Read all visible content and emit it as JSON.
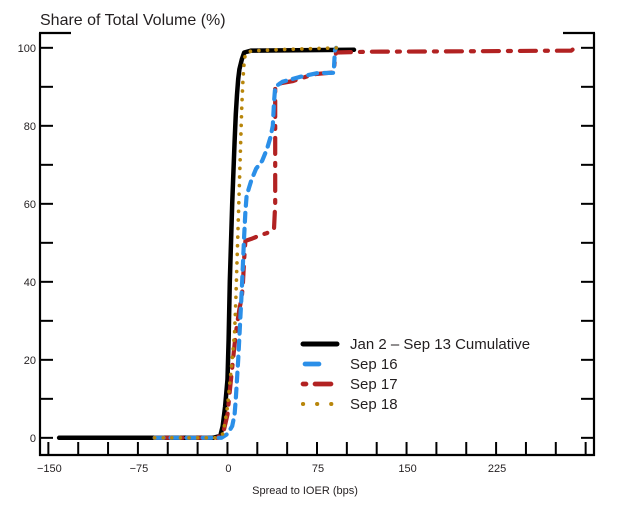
{
  "chart_data": {
    "type": "line",
    "title": "Share of Total Volume (%)",
    "xlabel": "Spread to IOER (bps)",
    "ylabel": "",
    "xlim": [
      -157,
      307
    ],
    "ylim": [
      -4.4,
      103.8
    ],
    "x_ticks": [
      -150,
      -125,
      -100,
      -75,
      -50,
      -25,
      0,
      25,
      50,
      75,
      100,
      125,
      150,
      175,
      200,
      225,
      250,
      275,
      300
    ],
    "x_tick_labels": [
      {
        "value": -150,
        "label": "−150"
      },
      {
        "value": -75,
        "label": "−75"
      },
      {
        "value": 0,
        "label": "0"
      },
      {
        "value": 75,
        "label": "75"
      },
      {
        "value": 150,
        "label": "150"
      },
      {
        "value": 225,
        "label": "225"
      }
    ],
    "y_ticks": [
      0,
      10,
      20,
      30,
      40,
      50,
      60,
      70,
      80,
      90,
      100
    ],
    "y_tick_labels": [
      {
        "value": 0,
        "label": "0"
      },
      {
        "value": 20,
        "label": "20"
      },
      {
        "value": 40,
        "label": "40"
      },
      {
        "value": 60,
        "label": "60"
      },
      {
        "value": 80,
        "label": "80"
      },
      {
        "value": 100,
        "label": "100"
      }
    ],
    "grid": false,
    "legend_position": "bottom-right",
    "series": [
      {
        "name": "Jan 2 – Sep 13 Cumulative",
        "color": "#000000",
        "style": "solid",
        "points": [
          [
            -141,
            0
          ],
          [
            -12,
            0
          ],
          [
            -6,
            0.5
          ],
          [
            -4,
            3
          ],
          [
            -2,
            8
          ],
          [
            0,
            15
          ],
          [
            1,
            25
          ],
          [
            2,
            40
          ],
          [
            3,
            50
          ],
          [
            4,
            60
          ],
          [
            5,
            68
          ],
          [
            6,
            76
          ],
          [
            7,
            83
          ],
          [
            8,
            88
          ],
          [
            9,
            92
          ],
          [
            10,
            94.5
          ],
          [
            12,
            97
          ],
          [
            14,
            98.8
          ],
          [
            20,
            99.3
          ],
          [
            106,
            99.5
          ]
        ]
      },
      {
        "name": "Sep 16",
        "color": "#2b8fe8",
        "style": "dashed",
        "points": [
          [
            -61,
            0
          ],
          [
            -5,
            0
          ],
          [
            0,
            1
          ],
          [
            4,
            3
          ],
          [
            6,
            6
          ],
          [
            7,
            10
          ],
          [
            8,
            15
          ],
          [
            9,
            20
          ],
          [
            10,
            26
          ],
          [
            11,
            32
          ],
          [
            12,
            38
          ],
          [
            13,
            45
          ],
          [
            14,
            52
          ],
          [
            15,
            58
          ],
          [
            16,
            62
          ],
          [
            18,
            64
          ],
          [
            20,
            66
          ],
          [
            24,
            69
          ],
          [
            29,
            71
          ],
          [
            33,
            74
          ],
          [
            36,
            77
          ],
          [
            38,
            80
          ],
          [
            39,
            86
          ],
          [
            40,
            90
          ],
          [
            46,
            91.3
          ],
          [
            60,
            92.5
          ],
          [
            75,
            93.5
          ],
          [
            89,
            93.6
          ],
          [
            90,
            99.3
          ],
          [
            91,
            100
          ]
        ]
      },
      {
        "name": "Sep 17",
        "color": "#b22222",
        "style": "dashdot",
        "points": [
          [
            -61,
            0
          ],
          [
            -8,
            0
          ],
          [
            -3,
            2
          ],
          [
            0,
            6
          ],
          [
            2,
            12
          ],
          [
            4,
            18
          ],
          [
            6,
            24
          ],
          [
            8,
            29
          ],
          [
            10,
            33
          ],
          [
            12,
            36
          ],
          [
            13,
            40
          ],
          [
            14,
            46
          ],
          [
            15,
            50.5
          ],
          [
            20,
            51
          ],
          [
            28,
            52
          ],
          [
            33,
            52.5
          ],
          [
            39,
            53.5
          ],
          [
            40,
            60
          ],
          [
            40,
            75
          ],
          [
            40,
            90.5
          ],
          [
            46,
            91
          ],
          [
            55,
            91.5
          ],
          [
            62,
            92.2
          ],
          [
            72,
            93.2
          ],
          [
            82,
            93.5
          ],
          [
            89,
            93.7
          ],
          [
            90,
            97
          ],
          [
            91,
            98.8
          ],
          [
            120,
            99
          ],
          [
            200,
            99.1
          ],
          [
            288,
            99.3
          ],
          [
            291,
            100
          ]
        ]
      },
      {
        "name": "Sep 18",
        "color": "#b8860b",
        "style": "dotted",
        "points": [
          [
            -61,
            0
          ],
          [
            -10,
            0
          ],
          [
            -4,
            1
          ],
          [
            -2,
            4
          ],
          [
            0,
            8
          ],
          [
            2,
            14
          ],
          [
            4,
            20
          ],
          [
            6,
            27
          ],
          [
            7,
            35
          ],
          [
            8,
            45
          ],
          [
            9,
            55
          ],
          [
            10,
            65
          ],
          [
            11,
            75
          ],
          [
            12,
            85
          ],
          [
            13,
            92
          ],
          [
            14,
            96.5
          ],
          [
            15,
            98.5
          ],
          [
            20,
            99.2
          ],
          [
            40,
            99.5
          ],
          [
            60,
            99.7
          ],
          [
            94,
            100
          ]
        ]
      }
    ]
  }
}
